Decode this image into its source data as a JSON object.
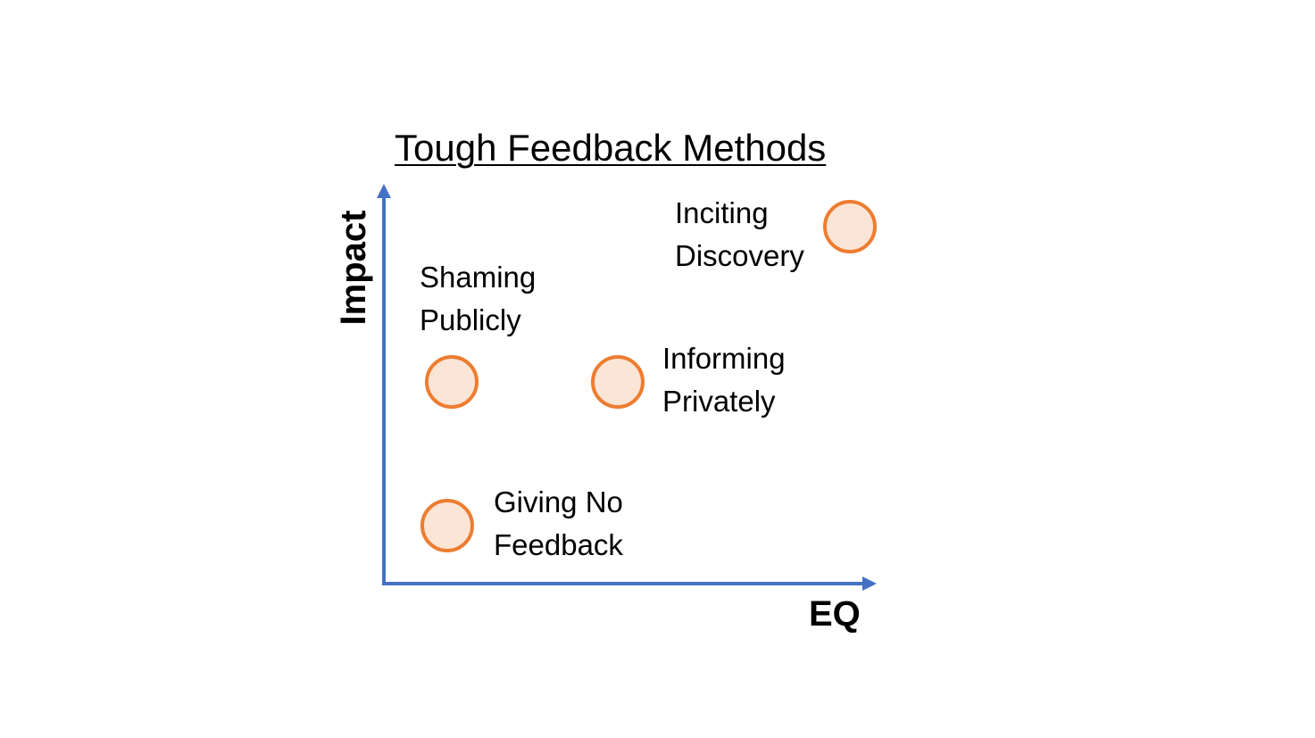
{
  "title": "Tough Feedback Methods",
  "axes": {
    "x_label": "EQ",
    "y_label": "Impact"
  },
  "colors": {
    "axis": "#4472C4",
    "marker_stroke": "#ED7D31",
    "marker_fill": "#FBE5D6",
    "text": "#000000"
  },
  "points": [
    {
      "line1": "Inciting",
      "line2": "Discovery"
    },
    {
      "line1": "Shaming",
      "line2": "Publicly"
    },
    {
      "line1": "Informing",
      "line2": "Privately"
    },
    {
      "line1": "Giving No",
      "line2": "Feedback"
    }
  ]
}
